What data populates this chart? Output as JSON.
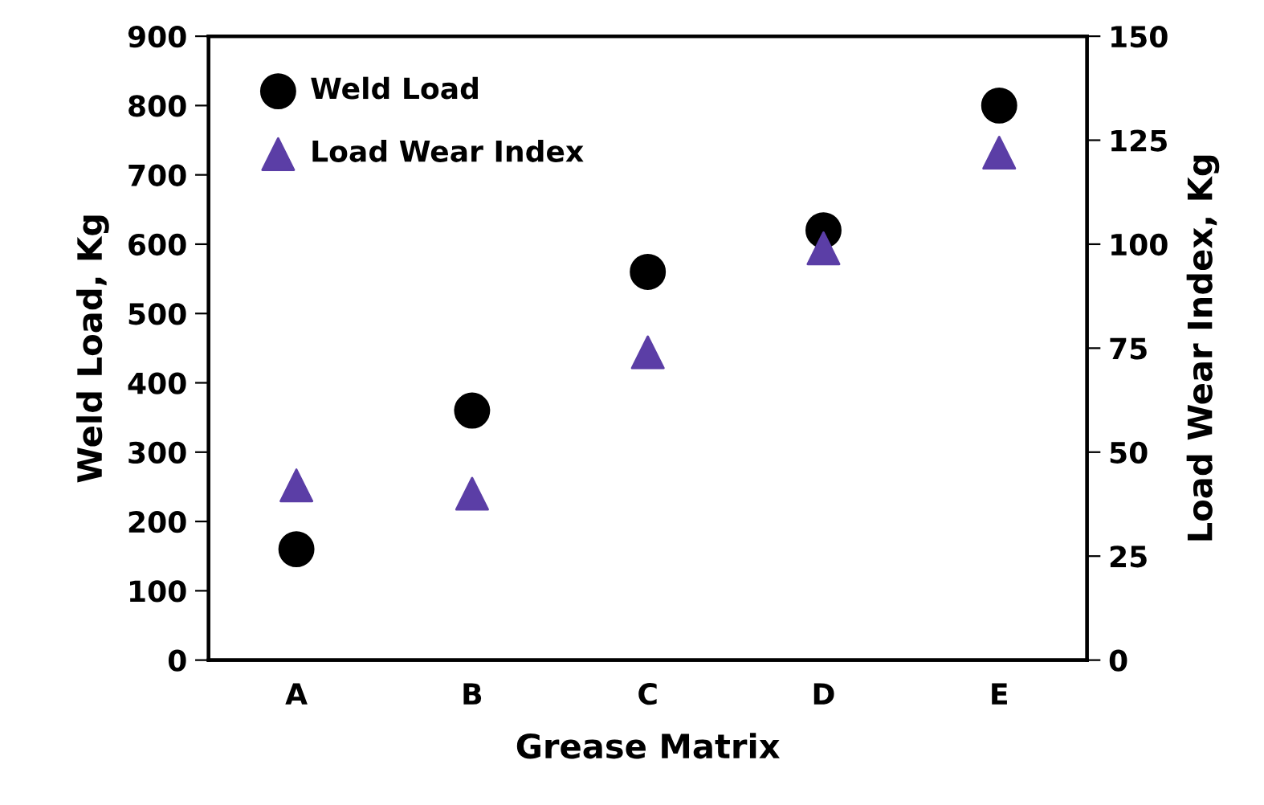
{
  "chart_data": {
    "type": "scatter",
    "xlabel": "Grease Matrix",
    "ylabel": "Weld Load, Kg",
    "y2label": "Load Wear Index, Kg",
    "categories": [
      "A",
      "B",
      "C",
      "D",
      "E"
    ],
    "series": [
      {
        "name": "Weld Load",
        "color": "#000000",
        "marker": "circle",
        "values": [
          160,
          360,
          560,
          620,
          800
        ]
      },
      {
        "name": "Load Wear Index",
        "color": "#5b3ea6",
        "marker": "triangle",
        "axis": "y2",
        "values": [
          42,
          40,
          74,
          99,
          122
        ]
      }
    ],
    "ylim": [
      0,
      900
    ],
    "yticks": [
      0,
      100,
      200,
      300,
      400,
      500,
      600,
      700,
      800,
      900
    ],
    "y2lim": [
      0,
      150
    ],
    "y2ticks": [
      0,
      25,
      50,
      75,
      100,
      125,
      150
    ],
    "grid": false,
    "legend": "top left"
  }
}
